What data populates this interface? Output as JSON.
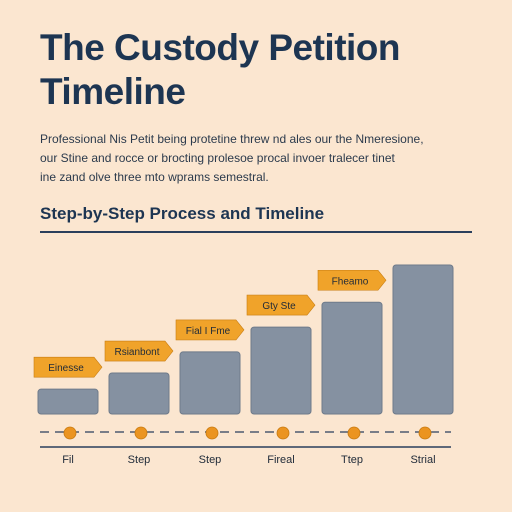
{
  "header": {
    "title": "The Custody Petition Timeline",
    "intro_lines": [
      "Professional Nis Petit being protetine threw nd ales our the Nmeresione,",
      "our Stine and rocce or brocting prolesoe procal invoer tralecer tinet",
      "ine zand olve three mto wprams semestral."
    ],
    "subtitle": "Step-by-Step Process and Timeline"
  },
  "chart_data": {
    "type": "bar",
    "categories": [
      "Fil",
      "Step",
      "Step",
      "Fireal",
      "Ttep",
      "Strial"
    ],
    "values": [
      2,
      3.3,
      5,
      7,
      9,
      12
    ],
    "ylim": [
      0,
      12
    ],
    "grid": false,
    "annotations": [
      "Einesse",
      "Rsianbont",
      "Fial I Fme",
      "Gty Ste",
      "Fheamo"
    ],
    "colors": {
      "bar": "#8591a1",
      "bar_outline": "#6e7a8a",
      "callout": "#f0a32a",
      "marker": "#eb9420",
      "axis": "#2a3f5c"
    }
  }
}
